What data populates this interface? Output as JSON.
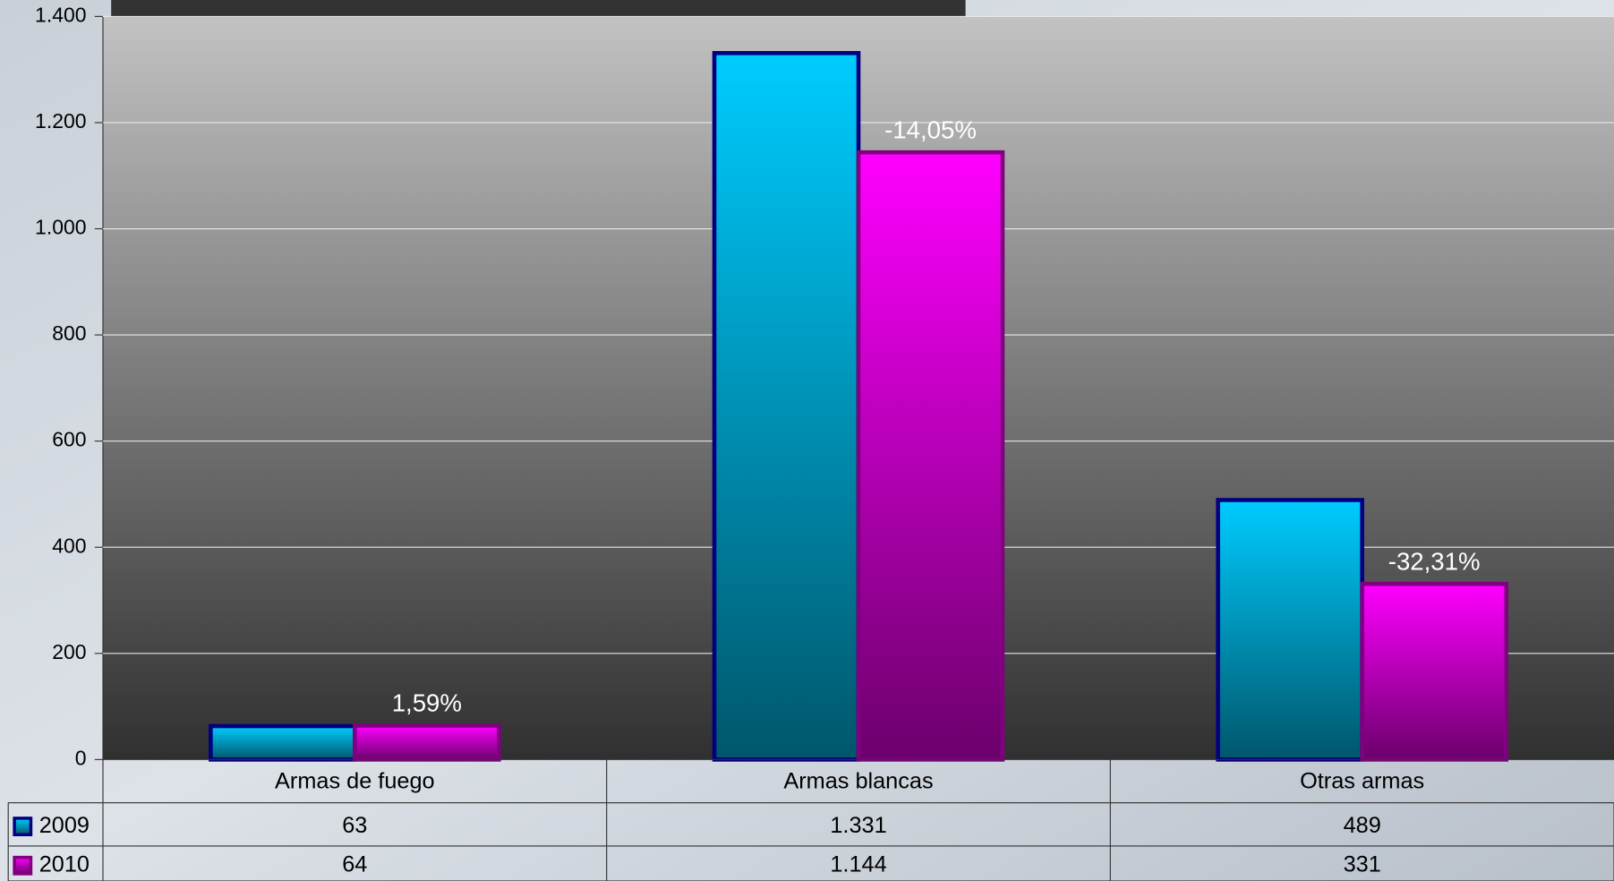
{
  "chart_data": {
    "type": "bar",
    "categories": [
      "Armas de fuego",
      "Armas blancas",
      "Otras armas"
    ],
    "series": [
      {
        "name": "2009",
        "color": "#00ccff",
        "values": [
          63,
          1331,
          489
        ],
        "value_labels": [
          "63",
          "1.331",
          "489"
        ]
      },
      {
        "name": "2010",
        "color": "#ff00ff",
        "values": [
          64,
          1144,
          331
        ],
        "value_labels": [
          "64",
          "1.144",
          "331"
        ]
      }
    ],
    "annotations": [
      "1,59%",
      "-14,05%",
      "-32,31%"
    ],
    "ylim": [
      0,
      1400
    ],
    "yticks": [
      0,
      200,
      400,
      600,
      800,
      {
        "value": 1000,
        "label": "1.000"
      },
      {
        "value": 1200,
        "label": "1.200"
      },
      {
        "value": 1400,
        "label": "1.400"
      }
    ],
    "grid": true
  }
}
